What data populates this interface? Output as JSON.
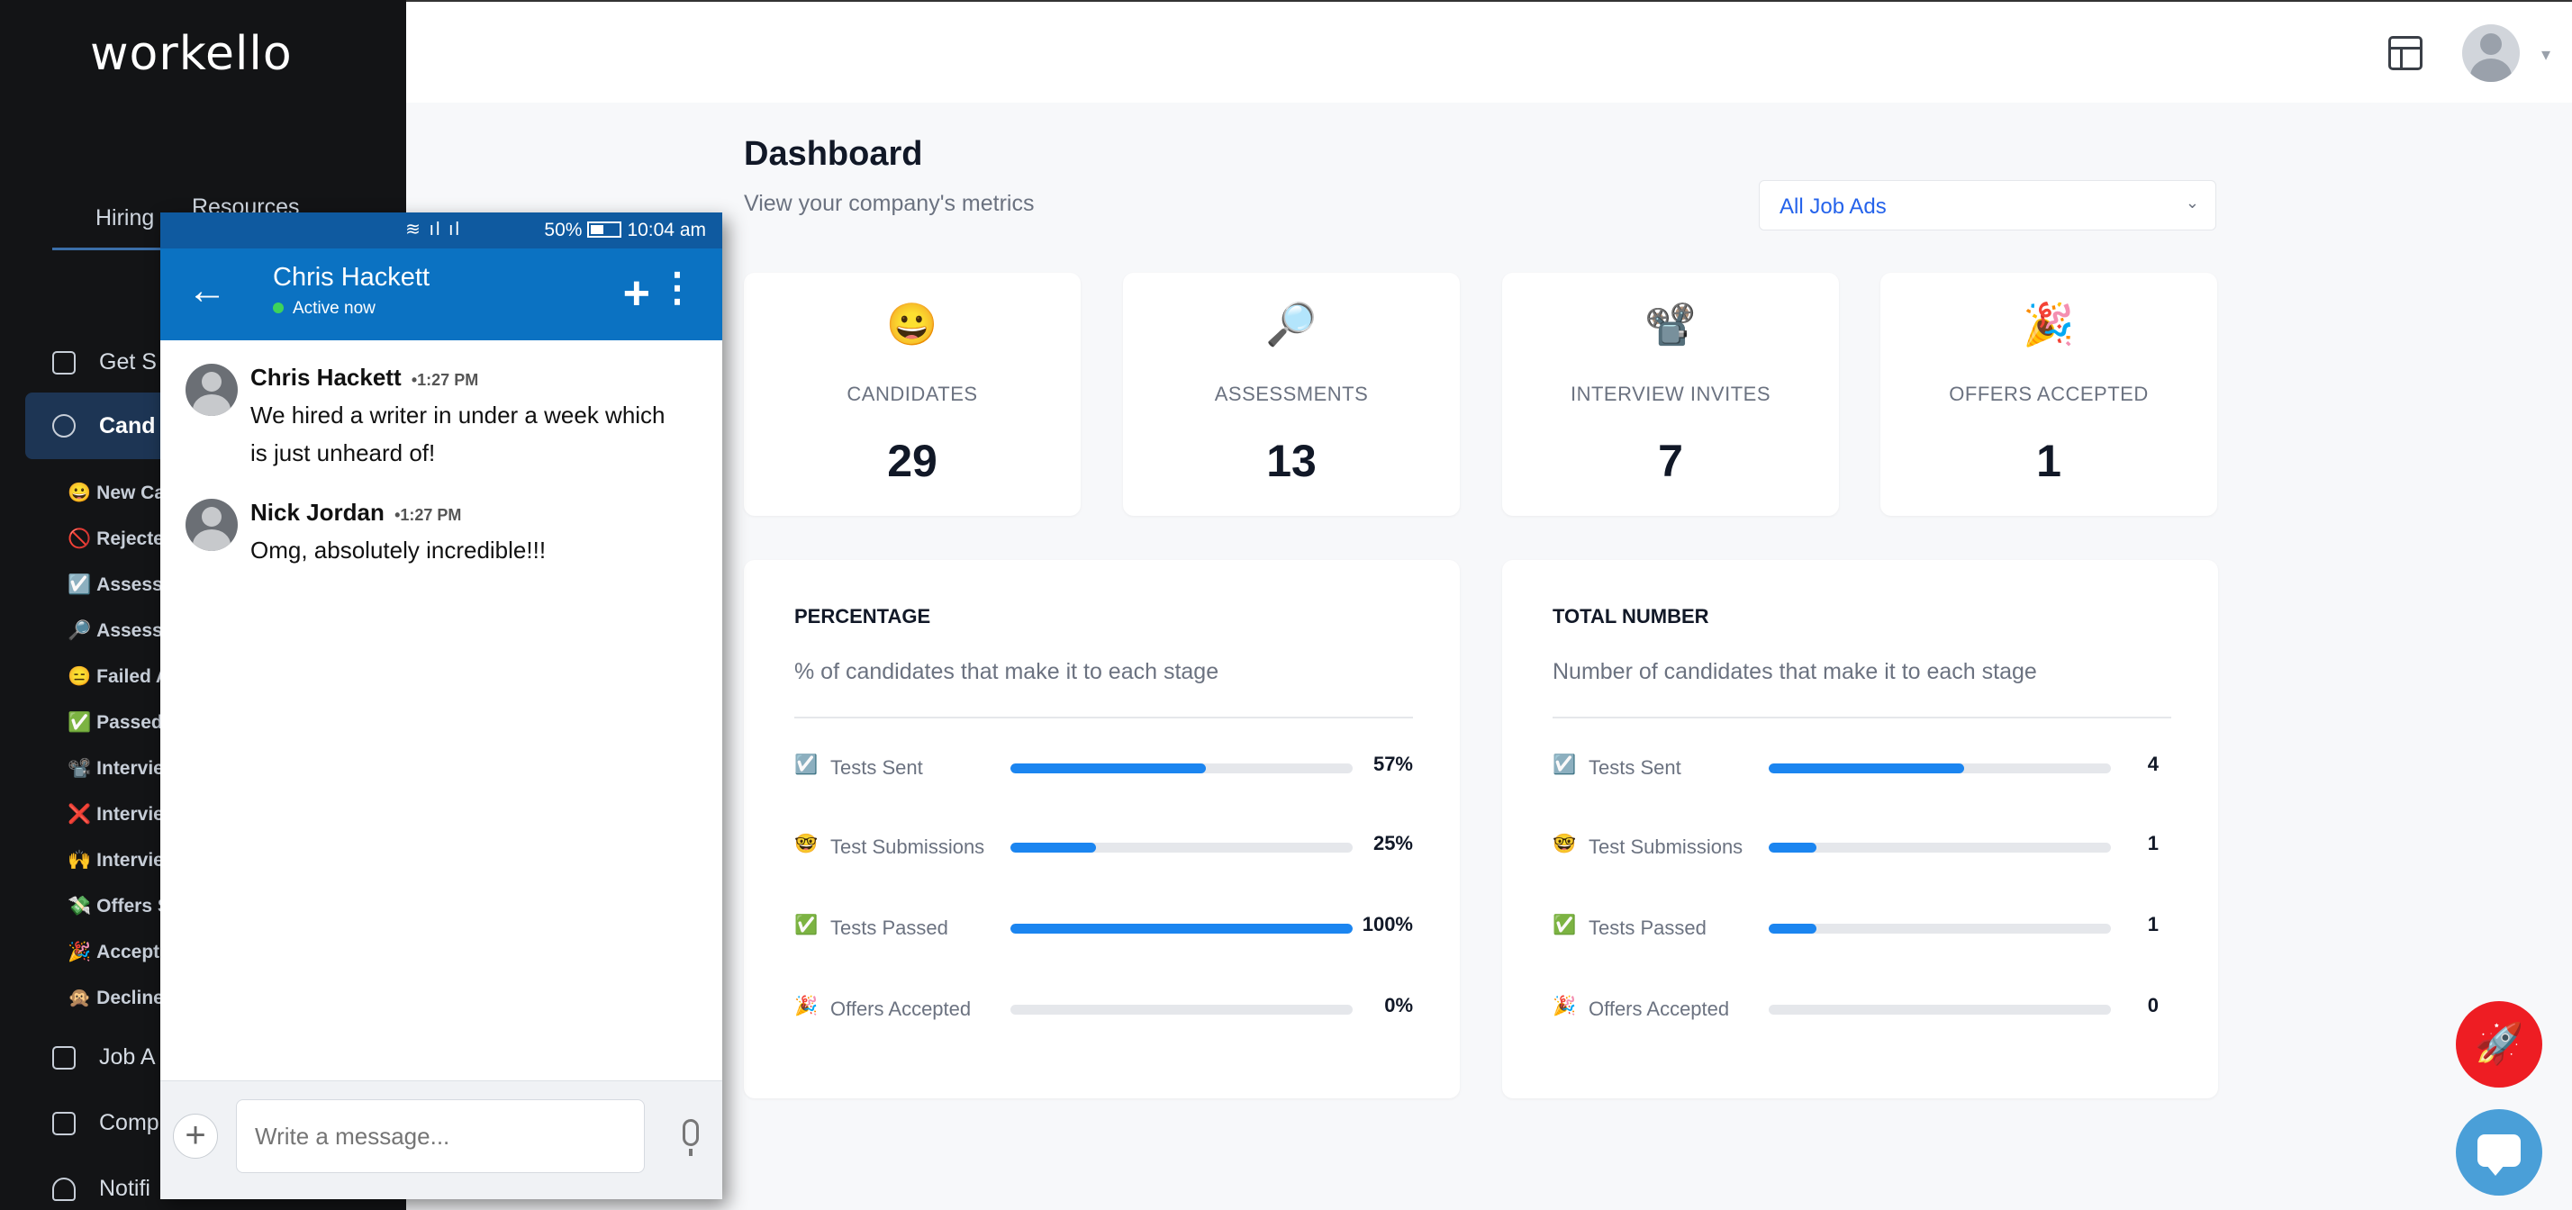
{
  "app": {
    "logo": "workello"
  },
  "sidebar": {
    "tabs": [
      {
        "label": "Hiring"
      },
      {
        "label": "Resources"
      }
    ],
    "items": [
      {
        "label": "Get S"
      },
      {
        "label": "Cand"
      },
      {
        "label": "Job A"
      },
      {
        "label": "Comp"
      },
      {
        "label": "Notifi"
      }
    ],
    "sub_items": [
      {
        "emoji": "😀",
        "label": "New Ca"
      },
      {
        "emoji": "🚫",
        "label": "Rejecte"
      },
      {
        "emoji": "☑️",
        "label": "Assess"
      },
      {
        "emoji": "🔎",
        "label": "Assess"
      },
      {
        "emoji": "😑",
        "label": "Failed A"
      },
      {
        "emoji": "✅",
        "label": "Passed"
      },
      {
        "emoji": "📽️",
        "label": "Intervie"
      },
      {
        "emoji": "❌",
        "label": "Intervie"
      },
      {
        "emoji": "🙌",
        "label": "Intervie"
      },
      {
        "emoji": "💸",
        "label": "Offers S"
      },
      {
        "emoji": "🎉",
        "label": "Accept"
      },
      {
        "emoji": "🙊",
        "label": "Decline"
      }
    ]
  },
  "header": {
    "layout_icon": "layout-icon",
    "avatar": "user-avatar",
    "caret": "▾"
  },
  "main": {
    "title": "Dashboard",
    "subtitle": "View your company's metrics",
    "job_select": {
      "value": "All Job Ads",
      "caret": "⌄"
    },
    "metrics": [
      {
        "emoji": "😀",
        "label": "CANDIDATES",
        "value": "29"
      },
      {
        "emoji": "🔎",
        "label": "ASSESSMENTS",
        "value": "13"
      },
      {
        "emoji": "📽️",
        "label": "INTERVIEW INVITES",
        "value": "7"
      },
      {
        "emoji": "🎉",
        "label": "OFFERS ACCEPTED",
        "value": "1"
      }
    ],
    "percentage_panel": {
      "title": "PERCENTAGE",
      "subtitle": "% of candidates that make it to each stage",
      "rows": [
        {
          "emoji": "☑️",
          "label": "Tests Sent",
          "value": "57%",
          "fraction": 0.57
        },
        {
          "emoji": "🤓",
          "label": "Test Submissions",
          "value": "25%",
          "fraction": 0.25
        },
        {
          "emoji": "✅",
          "label": "Tests Passed",
          "value": "100%",
          "fraction": 1.0
        },
        {
          "emoji": "🎉",
          "label": "Offers Accepted",
          "value": "0%",
          "fraction": 0.0
        }
      ]
    },
    "total_panel": {
      "title": "TOTAL NUMBER",
      "subtitle": "Number of candidates that make it to each stage",
      "rows": [
        {
          "emoji": "☑️",
          "label": "Tests Sent",
          "value": "4",
          "fraction": 0.57
        },
        {
          "emoji": "🤓",
          "label": "Test Submissions",
          "value": "1",
          "fraction": 0.14
        },
        {
          "emoji": "✅",
          "label": "Tests Passed",
          "value": "1",
          "fraction": 0.14
        },
        {
          "emoji": "🎉",
          "label": "Offers Accepted",
          "value": "0",
          "fraction": 0.0
        }
      ]
    }
  },
  "colors": {
    "accent": "#1b85f0",
    "sidebar_bg": "#131416",
    "rocket": "#ee1d23",
    "chat": "#4a9fd8",
    "phone_bar": "#0b72c2"
  },
  "phone": {
    "status": {
      "battery": "50%",
      "time": "10:04 am"
    },
    "contact": {
      "name": "Chris Hackett",
      "status": "Active now"
    },
    "messages": [
      {
        "name": "Chris Hackett",
        "time": "•1:27 PM",
        "text": "We hired a writer in under a week which is just unheard of!"
      },
      {
        "name": "Nick Jordan",
        "time": "•1:27 PM",
        "text": "Omg, absolutely incredible!!!"
      }
    ],
    "compose": {
      "placeholder": "Write a message..."
    }
  }
}
